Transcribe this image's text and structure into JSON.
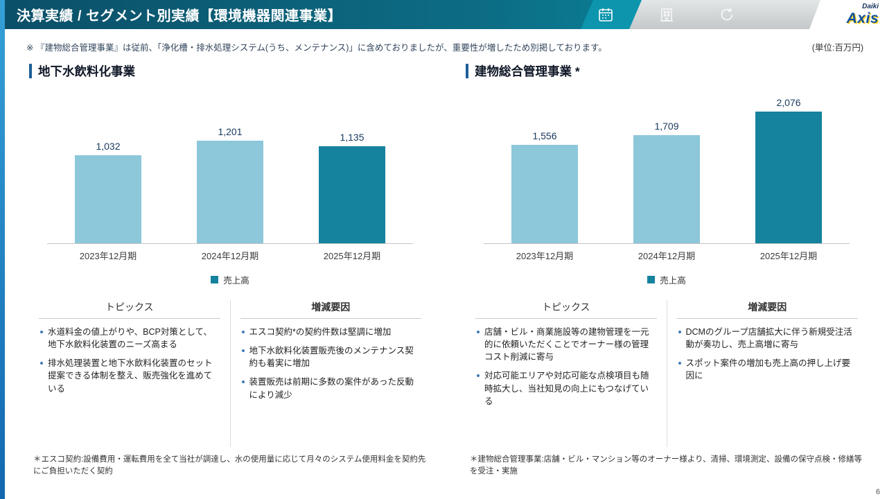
{
  "page": {
    "number": "6",
    "note": "※ 『建物総合管理事業』は従前、「浄化槽・排水処理システム(うち、メンテナンス)」に含めておりましたが、重要性が増したため別掲しております。",
    "unit_label": "(単位:百万円)"
  },
  "header": {
    "title": "決算実績 / セグメント別実績【環境機器関連事業】",
    "icons": [
      "calendar-icon",
      "building-icon",
      "refresh-icon"
    ],
    "logo": {
      "top": "Daiki",
      "main": "Axis"
    }
  },
  "colors": {
    "header_teal": "#0c6d85",
    "deco_teal": "#0c95ad",
    "bar_light": "#8CC7DA",
    "bar_dark": "#15829E",
    "accent_blue": "#1d5f97",
    "edge_blue": "#2e9bd6",
    "value_text": "#17375e",
    "logo_blue": "#0f52a0",
    "logo_yellow": "#ffd21e"
  },
  "chart_data": [
    {
      "type": "bar",
      "title": "地下水飲料化事業",
      "categories": [
        "2023年12月期",
        "2024年12月期",
        "2025年12月期"
      ],
      "values": [
        1032,
        1201,
        1135
      ],
      "value_labels": [
        "1,032",
        "1,201",
        "1,135"
      ],
      "series_name": "売上高",
      "unit": "百万円",
      "ylim": [
        0,
        1700
      ],
      "grid": false,
      "legend_position": "bottom",
      "bar_colors": [
        "#8CC7DA",
        "#8CC7DA",
        "#15829E"
      ]
    },
    {
      "type": "bar",
      "title": "建物総合管理事業 *",
      "categories": [
        "2023年12月期",
        "2024年12月期",
        "2025年12月期"
      ],
      "values": [
        1556,
        1709,
        2076
      ],
      "value_labels": [
        "1,556",
        "1,709",
        "2,076"
      ],
      "series_name": "売上高",
      "unit": "百万円",
      "ylim": [
        0,
        2300
      ],
      "grid": false,
      "legend_position": "bottom",
      "bar_colors": [
        "#8CC7DA",
        "#8CC7DA",
        "#15829E"
      ]
    }
  ],
  "sections": [
    {
      "title": "地下水飲料化事業",
      "topics": {
        "heading": "トピックス",
        "items": [
          "水道料金の値上がりや、BCP対策として、地下水飲料化装置のニーズ高まる",
          "排水処理装置と地下水飲料化装置のセット提案できる体制を整え、販売強化を進めている"
        ]
      },
      "factors": {
        "heading": "増減要因",
        "items": [
          "エスコ契約*の契約件数は堅調に増加",
          "地下水飲料化装置販売後のメンテナンス契約も着実に増加",
          "装置販売は前期に多数の案件があった反動により減少"
        ]
      },
      "footnote": "＊エスコ契約:設備費用・運転費用を全て当社が調達し、水の使用量に応じて月々のシステム使用料金を契約先にご負担いただく契約"
    },
    {
      "title": "建物総合管理事業 *",
      "topics": {
        "heading": "トピックス",
        "items": [
          "店舗・ビル・商業施設等の建物管理を一元的に依頼いただくことでオーナー様の管理コスト削減に寄与",
          "対応可能エリアや対応可能な点検項目も随時拡大し、当社知見の向上にもつなげている"
        ]
      },
      "factors": {
        "heading": "増減要因",
        "items": [
          "DCMのグループ店舗拡大に伴う新規受注活動が奏功し、売上高増に寄与",
          "スポット案件の増加も売上高の押し上げ要因に"
        ]
      },
      "footnote": "＊建物総合管理事業:店舗・ビル・マンション等のオーナー様より、清掃、環境測定、設備の保守点検・修繕等を受注・実施"
    }
  ]
}
